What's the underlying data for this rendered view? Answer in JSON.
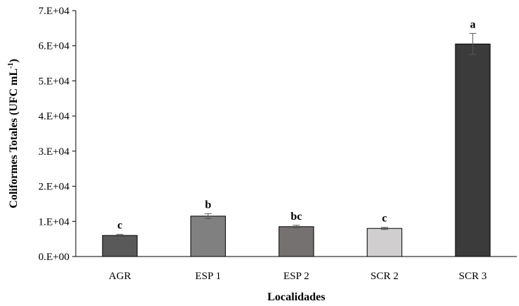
{
  "chart_data": {
    "type": "bar",
    "categories": [
      "AGR",
      "ESP 1",
      "ESP 2",
      "SCR 2",
      "SCR 3"
    ],
    "values": [
      6000,
      11500,
      8500,
      8000,
      60500
    ],
    "errors": [
      300,
      700,
      400,
      300,
      3000
    ],
    "significance": [
      "c",
      "b",
      "bc",
      "c",
      "a"
    ],
    "colors": [
      "#595959",
      "#808080",
      "#767171",
      "#d0cece",
      "#3b3b3b"
    ],
    "ylabel_main": "Coliformes Totales (UFC mL",
    "ylabel_sup": "-1",
    "ylabel_close": ")",
    "xlabel": "Localidades",
    "ylim": [
      0,
      70000
    ],
    "yticks": [
      0,
      10000,
      20000,
      30000,
      40000,
      50000,
      60000,
      70000
    ],
    "ytick_labels": [
      "0.E+00",
      "1.E+04",
      "2.E+04",
      "3.E+04",
      "4.E+04",
      "5.E+04",
      "6.E+04",
      "7.E+04"
    ]
  }
}
